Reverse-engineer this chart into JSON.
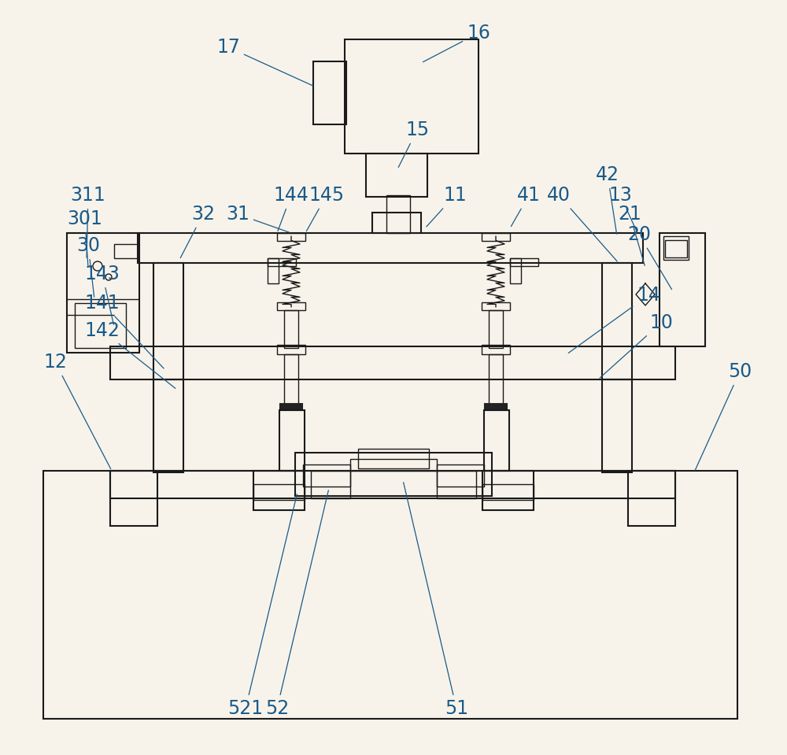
{
  "bg_color": "#f7f3ea",
  "line_color": "#1a1a1a",
  "label_color": "#1a5a8a",
  "figsize": [
    10.0,
    9.59
  ],
  "dpi": 100,
  "lw_main": 1.5,
  "lw_thin": 1.0,
  "label_fs": 17
}
